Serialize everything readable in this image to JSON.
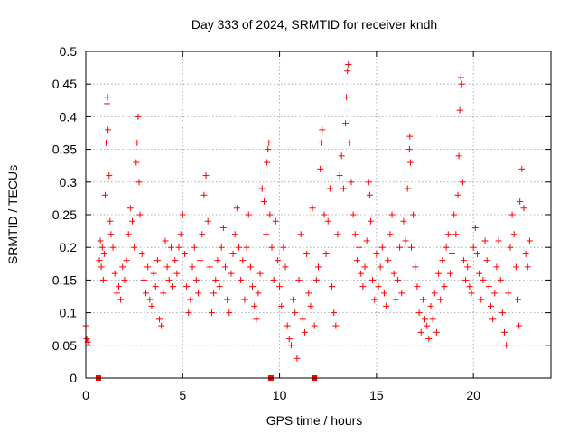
{
  "chart_data": {
    "type": "scatter",
    "title": "Day 333 of 2024, SRMTID for receiver kndh",
    "xlabel": "GPS time / hours",
    "ylabel": "SRMTID / TECUs",
    "xlim": [
      0,
      24
    ],
    "ylim": [
      0,
      0.5
    ],
    "grid": true,
    "marker": "+",
    "marker_color": "#ff0000",
    "xticks": [
      0,
      5,
      10,
      15,
      20
    ],
    "xtick_labels": [
      "0",
      "5",
      "10",
      "15",
      "20"
    ],
    "yticks": [
      0,
      0.05,
      0.1,
      0.15,
      0.2,
      0.25,
      0.3,
      0.35,
      0.4,
      0.45,
      0.5
    ],
    "ytick_labels": [
      "0",
      "0.05",
      "0.1",
      "0.15",
      "0.2",
      "0.25",
      "0.3",
      "0.35",
      "0.4",
      "0.45",
      "0.5"
    ],
    "zero_markers_x": [
      0.65,
      9.55,
      11.8
    ],
    "series": [
      {
        "name": "SRMTID",
        "points": [
          [
            0.0,
            0.08
          ],
          [
            0.05,
            0.06
          ],
          [
            0.1,
            0.055
          ],
          [
            0.7,
            0.18
          ],
          [
            0.75,
            0.21
          ],
          [
            0.8,
            0.17
          ],
          [
            0.85,
            0.2
          ],
          [
            0.9,
            0.15
          ],
          [
            0.95,
            0.19
          ],
          [
            1.0,
            0.28
          ],
          [
            1.05,
            0.36
          ],
          [
            1.1,
            0.42
          ],
          [
            1.12,
            0.43
          ],
          [
            1.15,
            0.38
          ],
          [
            1.2,
            0.31
          ],
          [
            1.25,
            0.24
          ],
          [
            1.3,
            0.22
          ],
          [
            1.4,
            0.2
          ],
          [
            1.5,
            0.16
          ],
          [
            1.6,
            0.13
          ],
          [
            1.7,
            0.14
          ],
          [
            1.8,
            0.12
          ],
          [
            1.9,
            0.17
          ],
          [
            2.0,
            0.15
          ],
          [
            2.1,
            0.18
          ],
          [
            2.2,
            0.22
          ],
          [
            2.3,
            0.26
          ],
          [
            2.4,
            0.24
          ],
          [
            2.5,
            0.2
          ],
          [
            2.6,
            0.33
          ],
          [
            2.65,
            0.36
          ],
          [
            2.7,
            0.4
          ],
          [
            2.75,
            0.3
          ],
          [
            2.8,
            0.25
          ],
          [
            2.9,
            0.19
          ],
          [
            3.0,
            0.15
          ],
          [
            3.1,
            0.13
          ],
          [
            3.2,
            0.17
          ],
          [
            3.3,
            0.12
          ],
          [
            3.4,
            0.11
          ],
          [
            3.5,
            0.16
          ],
          [
            3.6,
            0.14
          ],
          [
            3.7,
            0.18
          ],
          [
            3.8,
            0.09
          ],
          [
            3.9,
            0.08
          ],
          [
            4.0,
            0.13
          ],
          [
            4.1,
            0.21
          ],
          [
            4.2,
            0.17
          ],
          [
            4.3,
            0.15
          ],
          [
            4.4,
            0.2
          ],
          [
            4.5,
            0.14
          ],
          [
            4.6,
            0.18
          ],
          [
            4.7,
            0.16
          ],
          [
            4.8,
            0.2
          ],
          [
            4.9,
            0.22
          ],
          [
            5.0,
            0.25
          ],
          [
            5.1,
            0.19
          ],
          [
            5.2,
            0.14
          ],
          [
            5.3,
            0.1
          ],
          [
            5.4,
            0.12
          ],
          [
            5.5,
            0.17
          ],
          [
            5.6,
            0.2
          ],
          [
            5.7,
            0.15
          ],
          [
            5.8,
            0.13
          ],
          [
            5.9,
            0.18
          ],
          [
            6.0,
            0.22
          ],
          [
            6.1,
            0.28
          ],
          [
            6.2,
            0.31
          ],
          [
            6.3,
            0.24
          ],
          [
            6.4,
            0.17
          ],
          [
            6.5,
            0.1
          ],
          [
            6.6,
            0.13
          ],
          [
            6.7,
            0.15
          ],
          [
            6.8,
            0.18
          ],
          [
            6.9,
            0.14
          ],
          [
            7.0,
            0.2
          ],
          [
            7.1,
            0.23
          ],
          [
            7.2,
            0.17
          ],
          [
            7.3,
            0.12
          ],
          [
            7.4,
            0.1
          ],
          [
            7.5,
            0.16
          ],
          [
            7.6,
            0.19
          ],
          [
            7.7,
            0.22
          ],
          [
            7.8,
            0.26
          ],
          [
            7.9,
            0.2
          ],
          [
            8.0,
            0.15
          ],
          [
            8.1,
            0.18
          ],
          [
            8.2,
            0.12
          ],
          [
            8.3,
            0.2
          ],
          [
            8.4,
            0.25
          ],
          [
            8.5,
            0.17
          ],
          [
            8.6,
            0.14
          ],
          [
            8.7,
            0.11
          ],
          [
            8.8,
            0.09
          ],
          [
            8.9,
            0.13
          ],
          [
            9.0,
            0.16
          ],
          [
            9.1,
            0.29
          ],
          [
            9.2,
            0.27
          ],
          [
            9.3,
            0.22
          ],
          [
            9.35,
            0.33
          ],
          [
            9.4,
            0.35
          ],
          [
            9.45,
            0.36
          ],
          [
            9.5,
            0.25
          ],
          [
            9.6,
            0.2
          ],
          [
            9.7,
            0.15
          ],
          [
            9.8,
            0.24
          ],
          [
            9.9,
            0.18
          ],
          [
            10.0,
            0.14
          ],
          [
            10.1,
            0.11
          ],
          [
            10.2,
            0.2
          ],
          [
            10.3,
            0.17
          ],
          [
            10.4,
            0.08
          ],
          [
            10.5,
            0.06
          ],
          [
            10.6,
            0.05
          ],
          [
            10.7,
            0.12
          ],
          [
            10.8,
            0.1
          ],
          [
            10.9,
            0.03
          ],
          [
            11.0,
            0.15
          ],
          [
            11.1,
            0.22
          ],
          [
            11.2,
            0.09
          ],
          [
            11.3,
            0.07
          ],
          [
            11.4,
            0.19
          ],
          [
            11.5,
            0.13
          ],
          [
            11.6,
            0.11
          ],
          [
            11.7,
            0.26
          ],
          [
            11.8,
            0.08
          ],
          [
            11.9,
            0.15
          ],
          [
            12.0,
            0.17
          ],
          [
            12.1,
            0.32
          ],
          [
            12.15,
            0.36
          ],
          [
            12.2,
            0.38
          ],
          [
            12.3,
            0.25
          ],
          [
            12.4,
            0.19
          ],
          [
            12.5,
            0.24
          ],
          [
            12.6,
            0.29
          ],
          [
            12.7,
            0.14
          ],
          [
            12.8,
            0.1
          ],
          [
            12.9,
            0.08
          ],
          [
            13.0,
            0.22
          ],
          [
            13.1,
            0.31
          ],
          [
            13.2,
            0.34
          ],
          [
            13.3,
            0.29
          ],
          [
            13.4,
            0.39
          ],
          [
            13.45,
            0.43
          ],
          [
            13.5,
            0.47
          ],
          [
            13.55,
            0.48
          ],
          [
            13.6,
            0.36
          ],
          [
            13.7,
            0.3
          ],
          [
            13.8,
            0.25
          ],
          [
            13.9,
            0.22
          ],
          [
            14.0,
            0.18
          ],
          [
            14.1,
            0.2
          ],
          [
            14.2,
            0.16
          ],
          [
            14.3,
            0.14
          ],
          [
            14.4,
            0.17
          ],
          [
            14.5,
            0.21
          ],
          [
            14.6,
            0.3
          ],
          [
            14.65,
            0.28
          ],
          [
            14.7,
            0.24
          ],
          [
            14.8,
            0.15
          ],
          [
            14.9,
            0.12
          ],
          [
            15.0,
            0.19
          ],
          [
            15.1,
            0.14
          ],
          [
            15.2,
            0.17
          ],
          [
            15.3,
            0.2
          ],
          [
            15.4,
            0.13
          ],
          [
            15.5,
            0.11
          ],
          [
            15.6,
            0.18
          ],
          [
            15.7,
            0.22
          ],
          [
            15.8,
            0.25
          ],
          [
            15.9,
            0.16
          ],
          [
            16.0,
            0.12
          ],
          [
            16.1,
            0.15
          ],
          [
            16.2,
            0.2
          ],
          [
            16.3,
            0.13
          ],
          [
            16.4,
            0.24
          ],
          [
            16.5,
            0.21
          ],
          [
            16.6,
            0.29
          ],
          [
            16.7,
            0.35
          ],
          [
            16.72,
            0.37
          ],
          [
            16.75,
            0.33
          ],
          [
            16.8,
            0.2
          ],
          [
            16.9,
            0.25
          ],
          [
            17.0,
            0.17
          ],
          [
            17.1,
            0.14
          ],
          [
            17.2,
            0.1
          ],
          [
            17.3,
            0.07
          ],
          [
            17.4,
            0.12
          ],
          [
            17.5,
            0.09
          ],
          [
            17.6,
            0.08
          ],
          [
            17.7,
            0.06
          ],
          [
            17.8,
            0.11
          ],
          [
            17.9,
            0.09
          ],
          [
            18.0,
            0.13
          ],
          [
            18.1,
            0.07
          ],
          [
            18.2,
            0.16
          ],
          [
            18.3,
            0.12
          ],
          [
            18.4,
            0.18
          ],
          [
            18.5,
            0.14
          ],
          [
            18.6,
            0.2
          ],
          [
            18.7,
            0.22
          ],
          [
            18.8,
            0.16
          ],
          [
            18.9,
            0.19
          ],
          [
            19.0,
            0.25
          ],
          [
            19.1,
            0.22
          ],
          [
            19.2,
            0.28
          ],
          [
            19.25,
            0.34
          ],
          [
            19.3,
            0.41
          ],
          [
            19.35,
            0.46
          ],
          [
            19.4,
            0.45
          ],
          [
            19.45,
            0.3
          ],
          [
            19.5,
            0.18
          ],
          [
            19.6,
            0.15
          ],
          [
            19.7,
            0.17
          ],
          [
            19.8,
            0.14
          ],
          [
            19.9,
            0.13
          ],
          [
            20.0,
            0.2
          ],
          [
            20.1,
            0.23
          ],
          [
            20.2,
            0.19
          ],
          [
            20.3,
            0.16
          ],
          [
            20.4,
            0.12
          ],
          [
            20.5,
            0.15
          ],
          [
            20.6,
            0.21
          ],
          [
            20.7,
            0.18
          ],
          [
            20.8,
            0.14
          ],
          [
            20.9,
            0.11
          ],
          [
            21.0,
            0.09
          ],
          [
            21.1,
            0.13
          ],
          [
            21.2,
            0.17
          ],
          [
            21.3,
            0.21
          ],
          [
            21.4,
            0.15
          ],
          [
            21.5,
            0.1
          ],
          [
            21.6,
            0.07
          ],
          [
            21.7,
            0.05
          ],
          [
            21.8,
            0.13
          ],
          [
            21.9,
            0.2
          ],
          [
            22.0,
            0.25
          ],
          [
            22.1,
            0.22
          ],
          [
            22.2,
            0.17
          ],
          [
            22.3,
            0.12
          ],
          [
            22.35,
            0.08
          ],
          [
            22.4,
            0.27
          ],
          [
            22.5,
            0.32
          ],
          [
            22.6,
            0.26
          ],
          [
            22.7,
            0.19
          ],
          [
            22.8,
            0.17
          ],
          [
            22.9,
            0.21
          ]
        ]
      }
    ]
  }
}
